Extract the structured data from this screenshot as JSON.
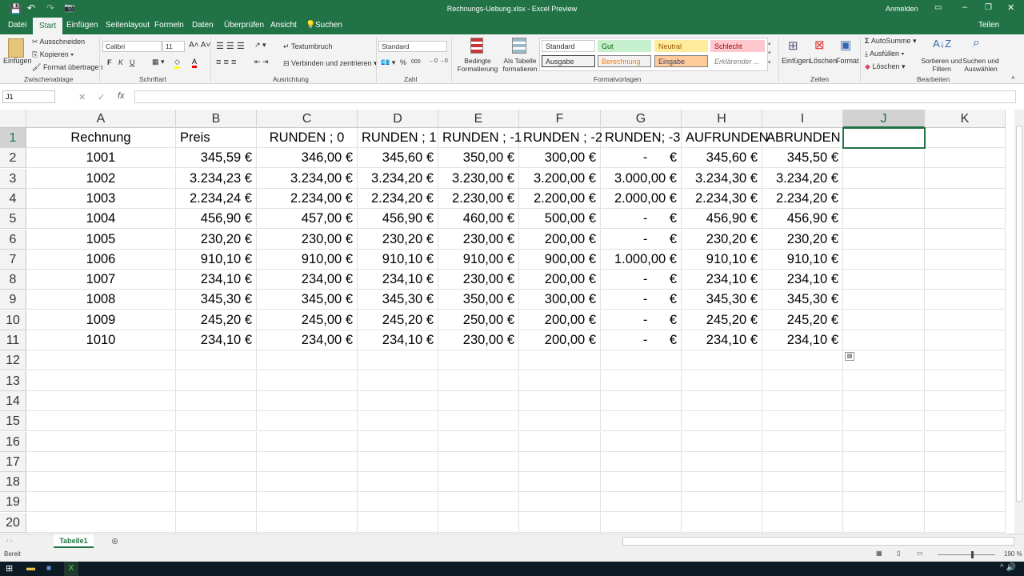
{
  "window": {
    "title": "Rechnungs-Uebung.xlsx - Excel Preview",
    "signin": "Anmelden",
    "share": "Teilen"
  },
  "tabs": [
    "Datei",
    "Start",
    "Einfügen",
    "Seitenlayout",
    "Formeln",
    "Daten",
    "Überprüfen",
    "Ansicht",
    "Suchen"
  ],
  "ribbon": {
    "clipboard": {
      "paste": "Einfügen",
      "cut": "Ausschneiden",
      "copy": "Kopieren",
      "format_painter": "Format übertragen",
      "label": "Zwischenablage"
    },
    "font": {
      "name": "Calibri",
      "size": "11",
      "bold": "F",
      "italic": "K",
      "underline": "U",
      "label": "Schriftart"
    },
    "alignment": {
      "wrap": "Textumbruch",
      "merge": "Verbinden und zentrieren",
      "label": "Ausrichtung"
    },
    "number": {
      "format": "Standard",
      "percent": "%",
      "thousands": "000",
      "label": "Zahl"
    },
    "styles": {
      "conditional": "Bedingte Formatierung",
      "as_table": "Als Tabelle formatieren",
      "items": [
        "Standard",
        "Gut",
        "Neutral",
        "Schlecht",
        "Ausgabe",
        "Berechnung",
        "Eingabe",
        "Erklärender ..."
      ],
      "label": "Formatvorlagen"
    },
    "cells": {
      "insert": "Einfügen",
      "delete": "Löschen",
      "format": "Format",
      "label": "Zellen"
    },
    "editing": {
      "autosum": "AutoSumme",
      "fill": "Ausfüllen",
      "clear": "Löschen",
      "sort": "Sortieren und Filtern",
      "find": "Suchen und Auswählen",
      "label": "Bearbeiten"
    }
  },
  "formula_bar": {
    "name_box": "J1",
    "fx": "fx",
    "value": ""
  },
  "columns": [
    "A",
    "B",
    "C",
    "D",
    "E",
    "F",
    "G",
    "H",
    "I",
    "J",
    "K"
  ],
  "rows": [
    [
      "Rechnung",
      "Preis",
      "RUNDEN ; 0",
      "RUNDEN ; 1",
      "RUNDEN ; -1",
      "RUNDEN ; -2",
      "RUNDEN; -3",
      "AUFRUNDEN",
      "ABRUNDEN"
    ],
    [
      "1001",
      "345,59 €",
      "346,00 €",
      "345,60 €",
      "350,00 €",
      "300,00 €",
      "-      €",
      "345,60 €",
      "345,50 €"
    ],
    [
      "1002",
      "3.234,23 €",
      "3.234,00 €",
      "3.234,20 €",
      "3.230,00 €",
      "3.200,00 €",
      "3.000,00 €",
      "3.234,30 €",
      "3.234,20 €"
    ],
    [
      "1003",
      "2.234,24 €",
      "2.234,00 €",
      "2.234,20 €",
      "2.230,00 €",
      "2.200,00 €",
      "2.000,00 €",
      "2.234,30 €",
      "2.234,20 €"
    ],
    [
      "1004",
      "456,90 €",
      "457,00 €",
      "456,90 €",
      "460,00 €",
      "500,00 €",
      "-      €",
      "456,90 €",
      "456,90 €"
    ],
    [
      "1005",
      "230,20 €",
      "230,00 €",
      "230,20 €",
      "230,00 €",
      "200,00 €",
      "-      €",
      "230,20 €",
      "230,20 €"
    ],
    [
      "1006",
      "910,10 €",
      "910,00 €",
      "910,10 €",
      "910,00 €",
      "900,00 €",
      "1.000,00 €",
      "910,10 €",
      "910,10 €"
    ],
    [
      "1007",
      "234,10 €",
      "234,00 €",
      "234,10 €",
      "230,00 €",
      "200,00 €",
      "-      €",
      "234,10 €",
      "234,10 €"
    ],
    [
      "1008",
      "345,30 €",
      "345,00 €",
      "345,30 €",
      "350,00 €",
      "300,00 €",
      "-      €",
      "345,30 €",
      "345,30 €"
    ],
    [
      "1009",
      "245,20 €",
      "245,00 €",
      "245,20 €",
      "250,00 €",
      "200,00 €",
      "-      €",
      "245,20 €",
      "245,20 €"
    ],
    [
      "1010",
      "234,10 €",
      "234,00 €",
      "234,10 €",
      "230,00 €",
      "200,00 €",
      "-      €",
      "234,10 €",
      "234,10 €"
    ]
  ],
  "row_count": 20,
  "selected_cell": "J1",
  "sheet_tabs": [
    "Tabelle1"
  ],
  "status": {
    "ready": "Bereit",
    "zoom": "190 %"
  },
  "colors": {
    "accent": "#217346"
  }
}
